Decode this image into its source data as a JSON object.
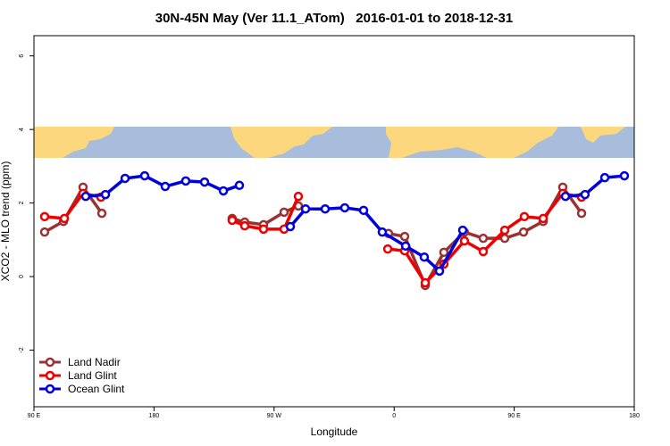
{
  "chart_data": {
    "type": "line",
    "title": "30N-45N May (Ver 11.1_ATom)   2016-01-01 to 2018-12-31",
    "xlabel": "Longitude",
    "ylabel": "XCO2 - MLO trend (ppm)",
    "xlim": [
      90,
      540
    ],
    "ylim": [
      -3.54,
      6.55
    ],
    "xticks": [
      {
        "value": 90,
        "label": "90 E"
      },
      {
        "value": 180,
        "label": "180"
      },
      {
        "value": 270,
        "label": "90 W"
      },
      {
        "value": 360,
        "label": "0"
      },
      {
        "value": 450,
        "label": "90 E"
      },
      {
        "value": 540,
        "label": "180"
      }
    ],
    "yticks": [
      -2,
      0,
      2,
      4,
      6
    ],
    "legend": "bottom-left",
    "series": [
      {
        "name": "Land Nadir",
        "color": "#993333",
        "x": [
          98.0,
          112.1,
          126.8,
          140.9,
          null,
          238.6,
          248.0,
          262.1,
          277.5,
          288.2,
          null,
          355.8,
          367.9,
          383.3,
          397.3,
          412.7,
          426.8,
          442.9,
          457.0,
          471.7,
          486.4,
          500.5
        ],
        "values": [
          1.21,
          1.5,
          2.43,
          1.72,
          null,
          1.58,
          1.48,
          1.41,
          1.75,
          1.92,
          null,
          1.17,
          1.09,
          -0.24,
          0.66,
          1.21,
          1.04,
          1.04,
          1.21,
          1.5,
          2.43,
          1.72
        ]
      },
      {
        "name": "Land Glint",
        "color": "#ee0000",
        "x": [
          98.0,
          112.8,
          126.8,
          140.2,
          null,
          238.6,
          248.0,
          262.1,
          277.5,
          288.2,
          null,
          355.2,
          367.9,
          383.3,
          397.3,
          412.7,
          426.8,
          442.9,
          457.6,
          471.7,
          486.4,
          500.5
        ],
        "values": [
          1.63,
          1.58,
          2.26,
          2.16,
          null,
          1.53,
          1.38,
          1.29,
          1.29,
          2.18,
          null,
          0.75,
          0.7,
          -0.17,
          0.34,
          0.97,
          0.68,
          1.26,
          1.63,
          1.58,
          2.26,
          2.16
        ]
      },
      {
        "name": "Ocean Glint",
        "color": "#0000dd",
        "x": [
          128.8,
          143.6,
          158.3,
          173.0,
          188.4,
          203.8,
          217.9,
          232.0,
          244.0,
          null,
          282.2,
          293.6,
          308.3,
          323.0,
          337.1,
          351.1,
          368.6,
          382.6,
          394.0,
          411.4,
          null,
          488.4,
          503.1,
          517.9,
          532.6
        ],
        "values": [
          2.18,
          2.23,
          2.67,
          2.74,
          2.45,
          2.6,
          2.57,
          2.33,
          2.48,
          null,
          1.36,
          1.84,
          1.84,
          1.87,
          1.8,
          1.21,
          0.83,
          0.53,
          0.15,
          1.26,
          null,
          2.18,
          2.23,
          2.69,
          2.74
        ]
      }
    ]
  }
}
